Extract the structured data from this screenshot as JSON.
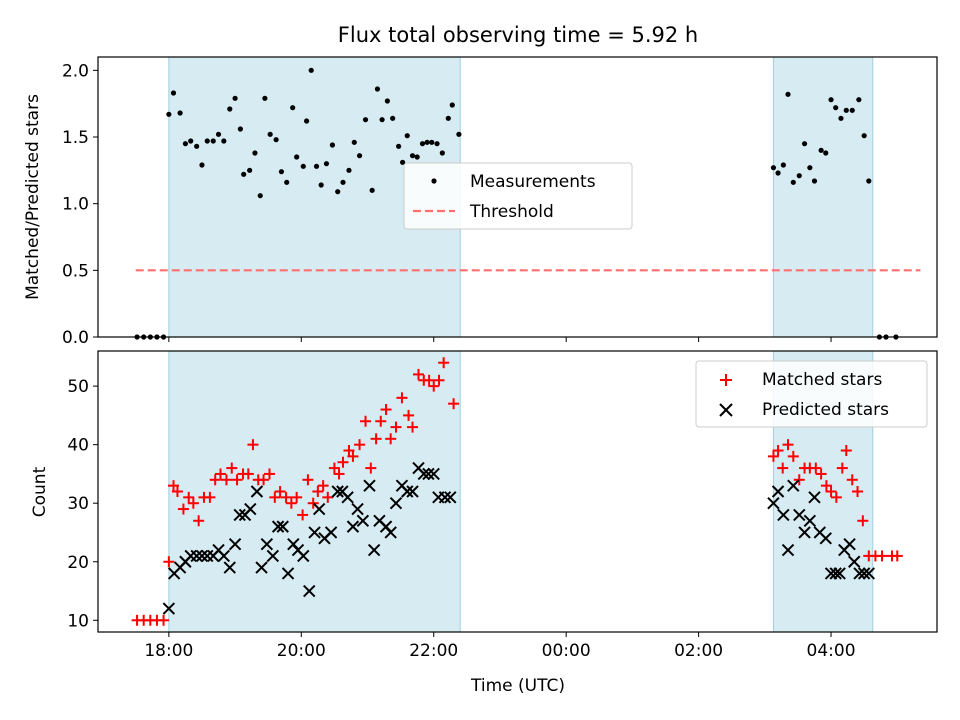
{
  "chart_data": [
    {
      "type": "scatter",
      "title": "Flux total observing time = 5.92 h",
      "xlabel": "",
      "ylabel": "Matched/Predicted stars",
      "xlim_hours": [
        16.93,
        29.6
      ],
      "ylim": [
        0.0,
        2.1
      ],
      "yticks": [
        0.0,
        0.5,
        1.0,
        1.5,
        2.0
      ],
      "yticklabels": [
        "0.0",
        "0.5",
        "1.0",
        "1.5",
        "2.0"
      ],
      "observing_windows": [
        [
          18.0,
          22.4
        ],
        [
          27.13,
          28.63
        ]
      ],
      "threshold": {
        "value": 0.5,
        "x_range": [
          17.5,
          29.35
        ],
        "color": "#ff6f6f"
      },
      "legend": {
        "placement": "center",
        "entries": [
          "Measurements",
          "Threshold"
        ]
      },
      "series": [
        {
          "name": "Measurements",
          "color": "#000000",
          "points": [
            [
              17.52,
              0.0
            ],
            [
              17.62,
              0.0
            ],
            [
              17.72,
              0.0
            ],
            [
              17.82,
              0.0
            ],
            [
              17.92,
              0.0
            ],
            [
              18.0,
              1.67
            ],
            [
              18.07,
              1.83
            ],
            [
              18.17,
              1.68
            ],
            [
              18.25,
              1.45
            ],
            [
              18.33,
              1.47
            ],
            [
              18.42,
              1.43
            ],
            [
              18.5,
              1.29
            ],
            [
              18.58,
              1.47
            ],
            [
              18.67,
              1.47
            ],
            [
              18.75,
              1.52
            ],
            [
              18.83,
              1.47
            ],
            [
              18.92,
              1.71
            ],
            [
              19.0,
              1.79
            ],
            [
              19.08,
              1.56
            ],
            [
              19.13,
              1.22
            ],
            [
              19.22,
              1.25
            ],
            [
              19.3,
              1.38
            ],
            [
              19.38,
              1.06
            ],
            [
              19.45,
              1.79
            ],
            [
              19.53,
              1.52
            ],
            [
              19.62,
              1.48
            ],
            [
              19.7,
              1.24
            ],
            [
              19.78,
              1.16
            ],
            [
              19.87,
              1.72
            ],
            [
              19.93,
              1.35
            ],
            [
              20.03,
              1.28
            ],
            [
              20.08,
              1.62
            ],
            [
              20.15,
              2.0
            ],
            [
              20.23,
              1.28
            ],
            [
              20.3,
              1.14
            ],
            [
              20.38,
              1.3
            ],
            [
              20.47,
              1.44
            ],
            [
              20.55,
              1.09
            ],
            [
              20.63,
              1.16
            ],
            [
              20.72,
              1.25
            ],
            [
              20.8,
              1.46
            ],
            [
              20.88,
              1.36
            ],
            [
              20.97,
              1.63
            ],
            [
              21.07,
              1.1
            ],
            [
              21.15,
              1.86
            ],
            [
              21.22,
              1.63
            ],
            [
              21.3,
              1.77
            ],
            [
              21.38,
              1.64
            ],
            [
              21.47,
              1.43
            ],
            [
              21.53,
              1.31
            ],
            [
              21.6,
              1.51
            ],
            [
              21.68,
              1.36
            ],
            [
              21.75,
              1.35
            ],
            [
              21.83,
              1.45
            ],
            [
              21.9,
              1.46
            ],
            [
              21.97,
              1.46
            ],
            [
              22.05,
              1.45
            ],
            [
              22.13,
              1.38
            ],
            [
              22.22,
              1.64
            ],
            [
              22.28,
              1.74
            ],
            [
              22.38,
              1.52
            ],
            [
              27.13,
              1.27
            ],
            [
              27.2,
              1.23
            ],
            [
              27.28,
              1.29
            ],
            [
              27.35,
              1.82
            ],
            [
              27.43,
              1.16
            ],
            [
              27.52,
              1.21
            ],
            [
              27.6,
              1.45
            ],
            [
              27.68,
              1.27
            ],
            [
              27.75,
              1.17
            ],
            [
              27.85,
              1.4
            ],
            [
              27.92,
              1.38
            ],
            [
              28.0,
              1.78
            ],
            [
              28.07,
              1.72
            ],
            [
              28.15,
              1.64
            ],
            [
              28.23,
              1.7
            ],
            [
              28.32,
              1.7
            ],
            [
              28.42,
              1.78
            ],
            [
              28.5,
              1.51
            ],
            [
              28.57,
              1.17
            ],
            [
              28.73,
              0.0
            ],
            [
              28.83,
              0.0
            ],
            [
              28.98,
              0.0
            ]
          ]
        }
      ]
    },
    {
      "type": "scatter",
      "title": "",
      "xlabel": "Time (UTC)",
      "ylabel": "Count",
      "xlim_hours": [
        16.93,
        29.6
      ],
      "ylim": [
        8,
        56
      ],
      "yticks": [
        10,
        20,
        30,
        40,
        50
      ],
      "yticklabels": [
        "10",
        "20",
        "30",
        "40",
        "50"
      ],
      "xticks_hours": [
        18,
        20,
        22,
        24,
        26,
        28
      ],
      "xticklabels": [
        "18:00",
        "20:00",
        "22:00",
        "00:00",
        "02:00",
        "04:00"
      ],
      "observing_windows": [
        [
          18.0,
          22.4
        ],
        [
          27.13,
          28.63
        ]
      ],
      "legend": {
        "placement": "top-right",
        "entries": [
          "Matched stars",
          "Predicted stars"
        ]
      },
      "series": [
        {
          "name": "Matched stars",
          "color": "#ff0000",
          "marker": "plus",
          "points": [
            [
              17.52,
              10
            ],
            [
              17.62,
              10
            ],
            [
              17.72,
              10
            ],
            [
              17.82,
              10
            ],
            [
              17.92,
              10
            ],
            [
              18.0,
              20
            ],
            [
              18.07,
              33
            ],
            [
              18.13,
              32
            ],
            [
              18.22,
              29
            ],
            [
              18.3,
              31
            ],
            [
              18.37,
              30
            ],
            [
              18.45,
              27
            ],
            [
              18.53,
              31
            ],
            [
              18.62,
              31
            ],
            [
              18.7,
              34
            ],
            [
              18.78,
              35
            ],
            [
              18.87,
              34
            ],
            [
              18.95,
              36
            ],
            [
              19.03,
              34
            ],
            [
              19.12,
              35
            ],
            [
              19.2,
              35
            ],
            [
              19.27,
              40
            ],
            [
              19.35,
              34
            ],
            [
              19.43,
              34
            ],
            [
              19.52,
              35
            ],
            [
              19.6,
              31
            ],
            [
              19.68,
              32
            ],
            [
              19.77,
              31
            ],
            [
              19.85,
              30
            ],
            [
              19.93,
              31
            ],
            [
              20.02,
              28
            ],
            [
              20.1,
              34
            ],
            [
              20.18,
              30
            ],
            [
              20.25,
              32
            ],
            [
              20.33,
              33
            ],
            [
              20.4,
              31
            ],
            [
              20.5,
              36
            ],
            [
              20.57,
              35
            ],
            [
              20.63,
              37
            ],
            [
              20.72,
              39
            ],
            [
              20.78,
              38
            ],
            [
              20.88,
              40
            ],
            [
              20.97,
              44
            ],
            [
              21.05,
              36
            ],
            [
              21.13,
              41
            ],
            [
              21.2,
              44
            ],
            [
              21.28,
              46
            ],
            [
              21.35,
              41
            ],
            [
              21.43,
              43
            ],
            [
              21.52,
              48
            ],
            [
              21.62,
              45
            ],
            [
              21.68,
              43
            ],
            [
              21.77,
              52
            ],
            [
              21.85,
              51
            ],
            [
              21.93,
              51
            ],
            [
              22.0,
              50
            ],
            [
              22.08,
              51
            ],
            [
              22.15,
              54
            ],
            [
              22.3,
              47
            ],
            [
              27.13,
              38
            ],
            [
              27.2,
              39
            ],
            [
              27.27,
              36
            ],
            [
              27.35,
              40
            ],
            [
              27.43,
              38
            ],
            [
              27.52,
              34
            ],
            [
              27.6,
              36
            ],
            [
              27.68,
              36
            ],
            [
              27.77,
              36
            ],
            [
              27.85,
              35
            ],
            [
              27.93,
              33
            ],
            [
              28.0,
              32
            ],
            [
              28.08,
              31
            ],
            [
              28.17,
              36
            ],
            [
              28.23,
              39
            ],
            [
              28.32,
              34
            ],
            [
              28.4,
              32
            ],
            [
              28.48,
              27
            ],
            [
              28.57,
              21
            ],
            [
              28.67,
              21
            ],
            [
              28.77,
              21
            ],
            [
              28.92,
              21
            ],
            [
              29.0,
              21
            ]
          ]
        },
        {
          "name": "Predicted stars",
          "color": "#000000",
          "marker": "x",
          "points": [
            [
              18.0,
              12
            ],
            [
              18.08,
              18
            ],
            [
              18.17,
              19
            ],
            [
              18.25,
              20
            ],
            [
              18.33,
              21
            ],
            [
              18.42,
              21
            ],
            [
              18.5,
              21
            ],
            [
              18.58,
              21
            ],
            [
              18.67,
              21
            ],
            [
              18.75,
              22
            ],
            [
              18.83,
              21
            ],
            [
              18.92,
              19
            ],
            [
              19.0,
              23
            ],
            [
              19.07,
              28
            ],
            [
              19.15,
              28
            ],
            [
              19.23,
              29
            ],
            [
              19.33,
              32
            ],
            [
              19.4,
              19
            ],
            [
              19.48,
              23
            ],
            [
              19.57,
              21
            ],
            [
              19.65,
              26
            ],
            [
              19.72,
              26
            ],
            [
              19.8,
              18
            ],
            [
              19.88,
              23
            ],
            [
              19.95,
              22
            ],
            [
              20.03,
              21
            ],
            [
              20.12,
              15
            ],
            [
              20.2,
              25
            ],
            [
              20.27,
              29
            ],
            [
              20.35,
              24
            ],
            [
              20.45,
              25
            ],
            [
              20.55,
              32
            ],
            [
              20.62,
              32
            ],
            [
              20.7,
              31
            ],
            [
              20.78,
              26
            ],
            [
              20.85,
              29
            ],
            [
              20.93,
              27
            ],
            [
              21.03,
              33
            ],
            [
              21.1,
              22
            ],
            [
              21.18,
              27
            ],
            [
              21.28,
              26
            ],
            [
              21.35,
              25
            ],
            [
              21.43,
              30
            ],
            [
              21.52,
              33
            ],
            [
              21.6,
              32
            ],
            [
              21.68,
              32
            ],
            [
              21.77,
              36
            ],
            [
              21.85,
              35
            ],
            [
              21.92,
              35
            ],
            [
              22.0,
              35
            ],
            [
              22.07,
              31
            ],
            [
              22.17,
              31
            ],
            [
              22.25,
              31
            ],
            [
              27.13,
              30
            ],
            [
              27.2,
              32
            ],
            [
              27.28,
              28
            ],
            [
              27.35,
              22
            ],
            [
              27.43,
              33
            ],
            [
              27.52,
              28
            ],
            [
              27.6,
              25
            ],
            [
              27.68,
              27
            ],
            [
              27.75,
              31
            ],
            [
              27.83,
              25
            ],
            [
              27.92,
              24
            ],
            [
              28.0,
              18
            ],
            [
              28.07,
              18
            ],
            [
              28.13,
              18
            ],
            [
              28.2,
              22
            ],
            [
              28.28,
              23
            ],
            [
              28.35,
              20
            ],
            [
              28.43,
              18
            ],
            [
              28.5,
              18
            ],
            [
              28.57,
              18
            ]
          ]
        }
      ]
    }
  ]
}
